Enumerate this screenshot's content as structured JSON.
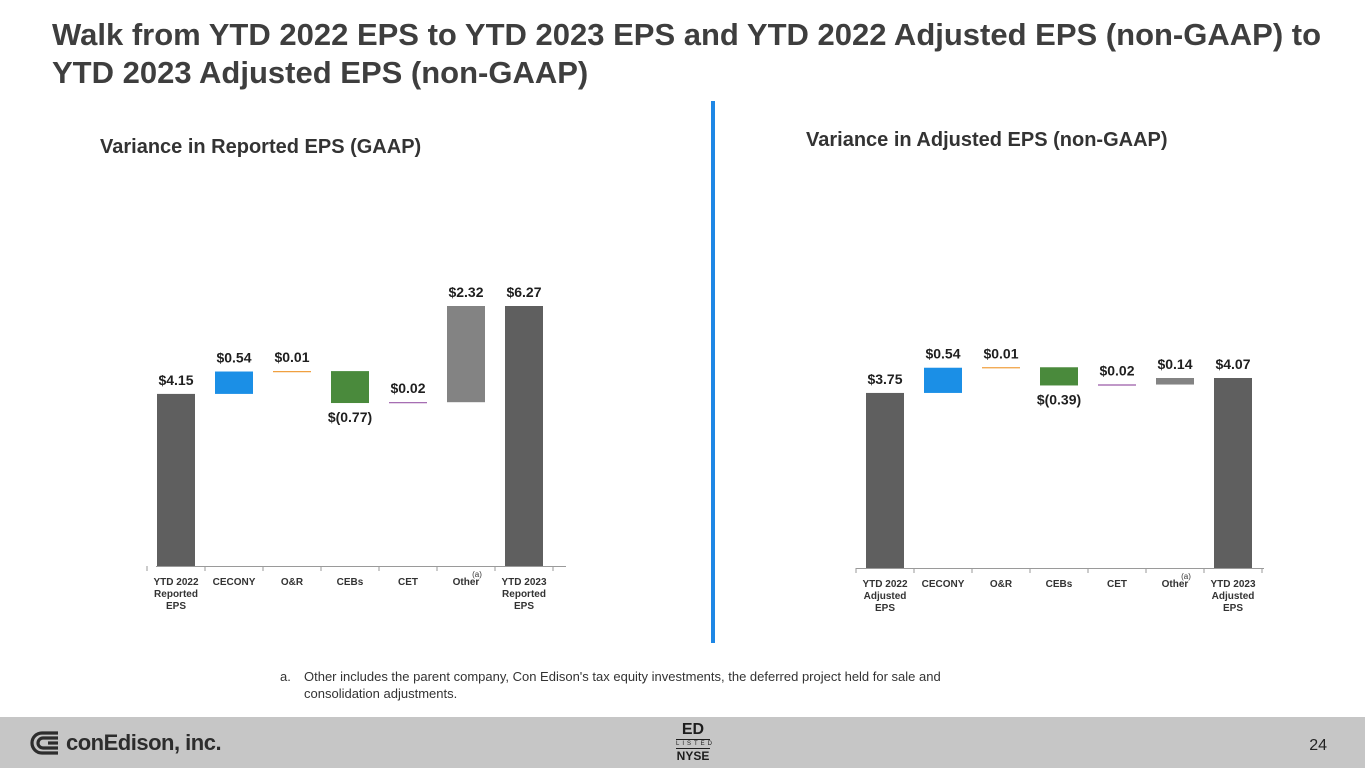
{
  "title": "Walk from YTD 2022 EPS to YTD 2023 EPS and YTD 2022 Adjusted EPS (non-GAAP) to YTD 2023 Adjusted EPS (non-GAAP)",
  "chart_data": [
    {
      "type": "bar",
      "subtype": "waterfall",
      "title": "Variance in Reported EPS (GAAP)",
      "categories": [
        "YTD 2022\nReported\nEPS",
        "CECONY",
        "O&R",
        "CEBs",
        "CET",
        "Other",
        "YTD 2023\nReported\nEPS"
      ],
      "values": [
        4.15,
        0.54,
        0.01,
        -0.77,
        0.02,
        2.32,
        6.27
      ],
      "kinds": [
        "total",
        "delta",
        "delta",
        "delta",
        "delta",
        "delta",
        "total"
      ],
      "data_labels": [
        "$4.15",
        "$0.54",
        "$0.01",
        "$(0.77)",
        "$0.02",
        "$2.32",
        "$6.27"
      ],
      "colors": [
        "#5f5f5f",
        "#1b8fe6",
        "#f0a040",
        "#4a8a3c",
        "#9a5aa8",
        "#838383",
        "#5f5f5f"
      ],
      "footnote_marks": [
        "",
        "",
        "",
        "",
        "",
        "(a)",
        ""
      ],
      "ylim": [
        0,
        6.6
      ]
    },
    {
      "type": "bar",
      "subtype": "waterfall",
      "title": "Variance in Adjusted EPS (non-GAAP)",
      "categories": [
        "YTD 2022\nAdjusted\nEPS",
        "CECONY",
        "O&R",
        "CEBs",
        "CET",
        "Other",
        "YTD 2023\nAdjusted\nEPS"
      ],
      "values": [
        3.75,
        0.54,
        0.01,
        -0.39,
        0.02,
        0.14,
        4.07
      ],
      "kinds": [
        "total",
        "delta",
        "delta",
        "delta",
        "delta",
        "delta",
        "total"
      ],
      "data_labels": [
        "$3.75",
        "$0.54",
        "$0.01",
        "$(0.39)",
        "$0.02",
        "$0.14",
        "$4.07"
      ],
      "colors": [
        "#5f5f5f",
        "#1b8fe6",
        "#f0a040",
        "#4a8a3c",
        "#9a5aa8",
        "#838383",
        "#5f5f5f"
      ],
      "footnote_marks": [
        "",
        "",
        "",
        "",
        "",
        "(a)",
        ""
      ],
      "ylim": [
        0,
        4.2
      ]
    }
  ],
  "footnote": {
    "letter": "a.",
    "text": "Other includes the parent company, Con Edison's tax equity investments, the deferred project held for sale and consolidation adjustments."
  },
  "footer": {
    "logo_text": "conEdison, inc.",
    "exchange": {
      "ticker": "ED",
      "listed": "LISTED",
      "exchange_name": "NYSE"
    },
    "page_number": "24"
  }
}
